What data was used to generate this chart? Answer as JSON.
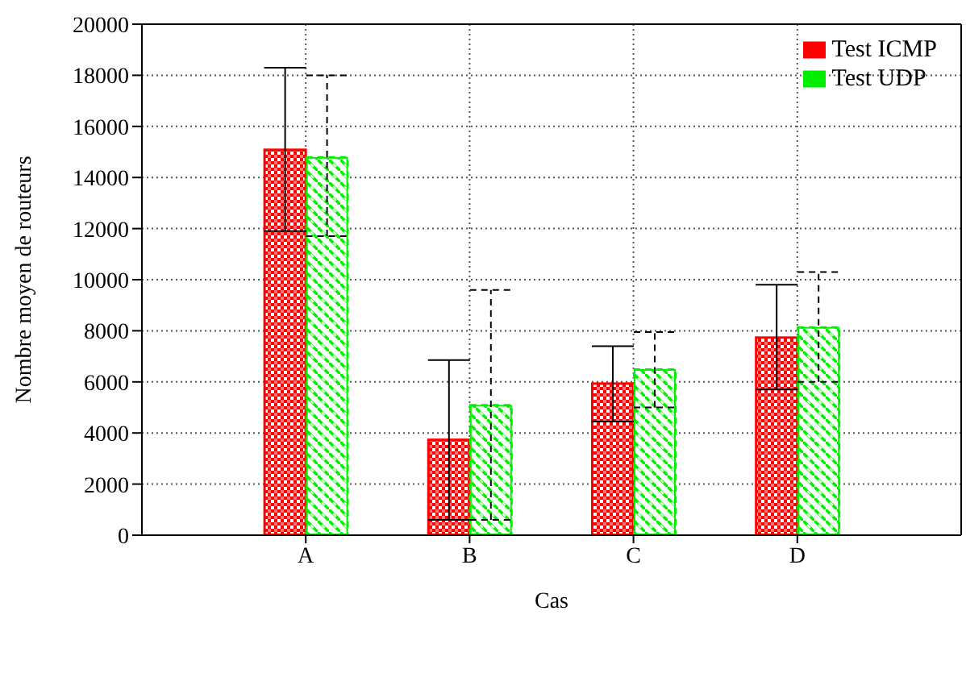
{
  "chart_data": {
    "type": "bar",
    "xlabel": "Cas",
    "ylabel": "Nombre moyen de routeurs",
    "categories": [
      "A",
      "B",
      "C",
      "D"
    ],
    "series": [
      {
        "name": "Test ICMP",
        "color": "#ff0000",
        "values": [
          15100,
          3750,
          5950,
          7750
        ],
        "errors": [
          [
            11900,
            18300
          ],
          [
            600,
            6850
          ],
          [
            4450,
            7400
          ],
          [
            5700,
            9800
          ]
        ],
        "line_style": "solid"
      },
      {
        "name": "Test UDP",
        "color": "#00ee00",
        "values": [
          14800,
          5100,
          6500,
          8150
        ],
        "errors": [
          [
            11700,
            18000
          ],
          [
            600,
            9600
          ],
          [
            5000,
            7950
          ],
          [
            6000,
            10300
          ]
        ],
        "line_style": "dashed"
      }
    ],
    "ylim": [
      0,
      20000
    ],
    "yticks": [
      0,
      2000,
      4000,
      6000,
      8000,
      10000,
      12000,
      14000,
      16000,
      18000,
      20000
    ],
    "grid": true,
    "legend": "top right"
  }
}
